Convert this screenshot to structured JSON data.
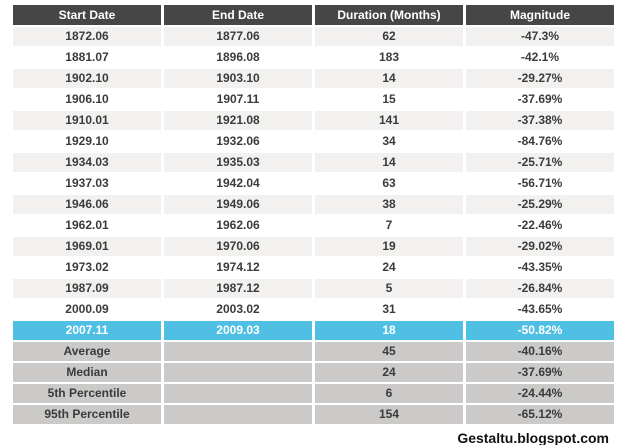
{
  "chart_data": {
    "type": "table",
    "title": "",
    "columns": [
      "Start Date",
      "End Date",
      "Duration (Months)",
      "Magnitude"
    ],
    "rows": [
      [
        "1872.06",
        "1877.06",
        "62",
        "-47.3%"
      ],
      [
        "1881.07",
        "1896.08",
        "183",
        "-42.1%"
      ],
      [
        "1902.10",
        "1903.10",
        "14",
        "-29.27%"
      ],
      [
        "1906.10",
        "1907.11",
        "15",
        "-37.69%"
      ],
      [
        "1910.01",
        "1921.08",
        "141",
        "-37.38%"
      ],
      [
        "1929.10",
        "1932.06",
        "34",
        "-84.76%"
      ],
      [
        "1934.03",
        "1935.03",
        "14",
        "-25.71%"
      ],
      [
        "1937.03",
        "1942.04",
        "63",
        "-56.71%"
      ],
      [
        "1946.06",
        "1949.06",
        "38",
        "-25.29%"
      ],
      [
        "1962.01",
        "1962.06",
        "7",
        "-22.46%"
      ],
      [
        "1969.01",
        "1970.06",
        "19",
        "-29.02%"
      ],
      [
        "1973.02",
        "1974.12",
        "24",
        "-43.35%"
      ],
      [
        "1987.09",
        "1987.12",
        "5",
        "-26.84%"
      ],
      [
        "2000.09",
        "2003.02",
        "31",
        "-43.65%"
      ]
    ],
    "highlight_row": [
      "2007.11",
      "2009.03",
      "18",
      "-50.82%"
    ],
    "summary_rows": [
      [
        "Average",
        "",
        "45",
        "-40.16%"
      ],
      [
        "Median",
        "",
        "24",
        "-37.69%"
      ],
      [
        "5th Percentile",
        "",
        "6",
        "-24.44%"
      ],
      [
        "95th Percentile",
        "",
        "154",
        "-65.12%"
      ]
    ]
  },
  "watermark": "Gestaltu.blogspot.com",
  "colors": {
    "header_bg": "#464646",
    "header_text": "#ffffff",
    "row_odd_bg": "#f2f1ef",
    "row_even_bg": "#ffffff",
    "highlight_bg": "#4fc0e4",
    "highlight_text": "#ffffff",
    "summary_bg": "#cbcac8",
    "body_text": "#3b3b3b"
  }
}
